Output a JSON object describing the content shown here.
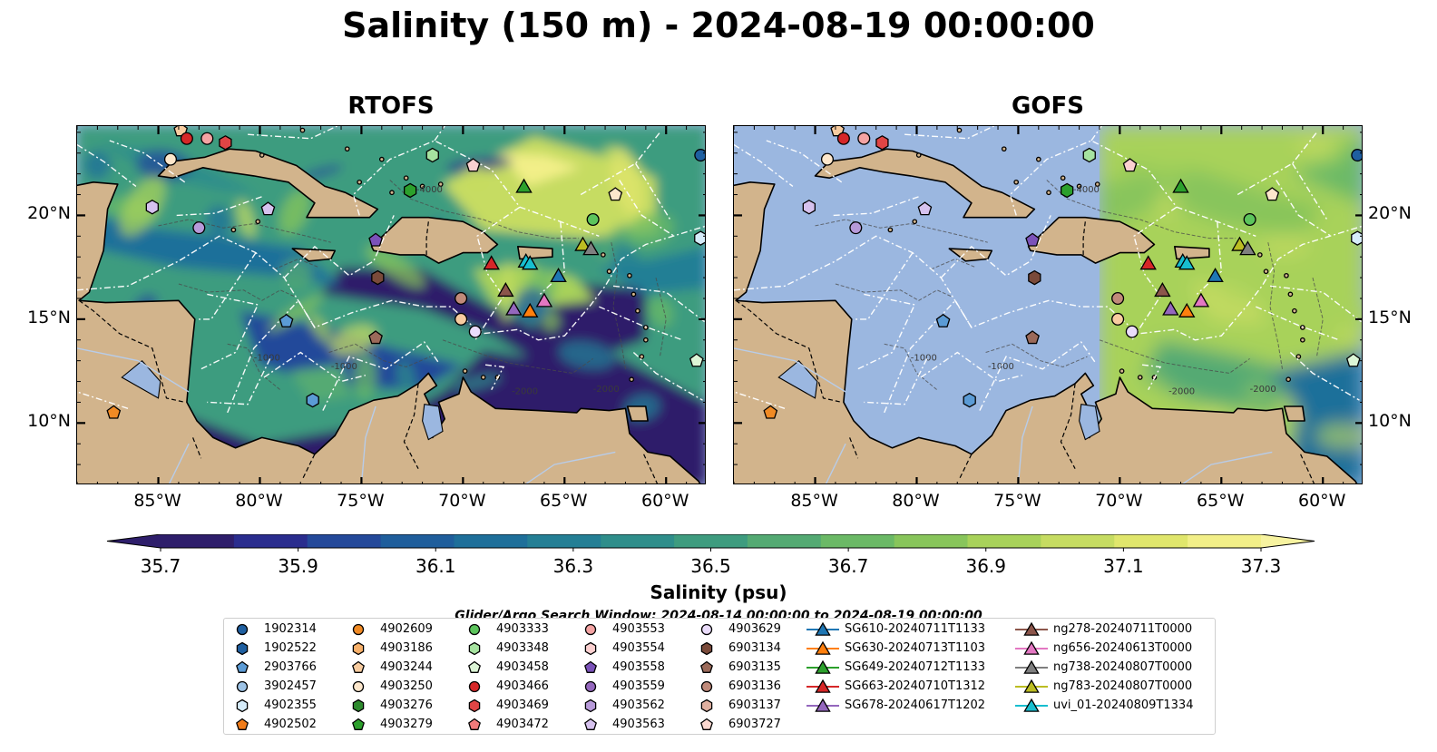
{
  "title": "Salinity (150 m) - 2024-08-19 00:00:00",
  "panels": [
    {
      "title": "RTOFS",
      "model": "rtofs"
    },
    {
      "title": "GOFS",
      "model": "gofs"
    }
  ],
  "map": {
    "lon_range": [
      -89,
      -58
    ],
    "lat_range": [
      7,
      24.3
    ],
    "lon_ticks": [
      "85°W",
      "80°W",
      "75°W",
      "70°W",
      "65°W",
      "60°W"
    ],
    "lon_tick_values": [
      -85,
      -80,
      -75,
      -70,
      -65,
      -60
    ],
    "lat_ticks": [
      "20°N",
      "15°N",
      "10°N"
    ],
    "lat_tick_values": [
      20,
      15,
      10
    ],
    "contour_labels": [
      "-1000",
      "-2000",
      "-4000",
      "-1000",
      "-2000"
    ],
    "colors": {
      "land": "#d2b48c",
      "ocean_mask": "#9bb7e0",
      "coast": "#000000",
      "eez": "#ffffff"
    }
  },
  "colorbar": {
    "label": "Salinity (psu)",
    "ticks": [
      "35.7",
      "35.9",
      "36.1",
      "36.3",
      "36.5",
      "36.7",
      "36.9",
      "37.1",
      "37.3"
    ],
    "tick_values": [
      35.7,
      35.9,
      36.1,
      36.3,
      36.5,
      36.7,
      36.9,
      37.1,
      37.3
    ],
    "range": [
      35.7,
      37.3
    ],
    "colors": [
      "#2e1e6b",
      "#2a2d8e",
      "#24499a",
      "#1f5e9c",
      "#1e6f9a",
      "#247f95",
      "#2f8e8b",
      "#3e9c7f",
      "#54aa73",
      "#6bb966",
      "#88c55b",
      "#a8d25a",
      "#c6dc62",
      "#e0e66c",
      "#f2ef88"
    ]
  },
  "search_window": "Glider/Argo Search Window: 2024-08-14 00:00:00 to 2024-08-19 00:00:00",
  "legend": {
    "columns": [
      [
        {
          "id": "1902314",
          "color": "#1f5fa0",
          "shape": "circle"
        },
        {
          "id": "1902522",
          "color": "#1f5fa0",
          "shape": "hexagon"
        },
        {
          "id": "2903766",
          "color": "#5b9bd5",
          "shape": "pentagon"
        },
        {
          "id": "3902457",
          "color": "#9dc3e6",
          "shape": "circle"
        },
        {
          "id": "4902355",
          "color": "#d6ecfa",
          "shape": "hexagon"
        },
        {
          "id": "4902502",
          "color": "#f07c1a",
          "shape": "pentagon"
        }
      ],
      [
        {
          "id": "4902609",
          "color": "#f08a24",
          "shape": "circle"
        },
        {
          "id": "4903186",
          "color": "#f7b06a",
          "shape": "hexagon"
        },
        {
          "id": "4903244",
          "color": "#f8cca0",
          "shape": "pentagon"
        },
        {
          "id": "4903250",
          "color": "#fde7cc",
          "shape": "circle"
        },
        {
          "id": "4903276",
          "color": "#2e8b2e",
          "shape": "hexagon"
        },
        {
          "id": "4903279",
          "color": "#2ca02c",
          "shape": "pentagon"
        }
      ],
      [
        {
          "id": "4903333",
          "color": "#5cc45c",
          "shape": "circle"
        },
        {
          "id": "4903348",
          "color": "#a6e3a0",
          "shape": "hexagon"
        },
        {
          "id": "4903458",
          "color": "#dcf5d6",
          "shape": "pentagon"
        },
        {
          "id": "4903466",
          "color": "#d62728",
          "shape": "circle"
        },
        {
          "id": "4903469",
          "color": "#e04545",
          "shape": "hexagon"
        },
        {
          "id": "4903472",
          "color": "#f07a7a",
          "shape": "pentagon"
        }
      ],
      [
        {
          "id": "4903553",
          "color": "#f4a3a3",
          "shape": "circle"
        },
        {
          "id": "4903554",
          "color": "#fbd0d0",
          "shape": "hexagon"
        },
        {
          "id": "4903558",
          "color": "#7b52b9",
          "shape": "pentagon"
        },
        {
          "id": "4903559",
          "color": "#9467bd",
          "shape": "circle"
        },
        {
          "id": "4903562",
          "color": "#b79ad9",
          "shape": "hexagon"
        },
        {
          "id": "4903563",
          "color": "#d6c2ee",
          "shape": "pentagon"
        }
      ],
      [
        {
          "id": "4903629",
          "color": "#eadcfb",
          "shape": "circle"
        },
        {
          "id": "6903134",
          "color": "#7a4a3a",
          "shape": "hexagon"
        },
        {
          "id": "6903135",
          "color": "#9b6a5a",
          "shape": "pentagon"
        },
        {
          "id": "6903136",
          "color": "#c08a7a",
          "shape": "circle"
        },
        {
          "id": "6903137",
          "color": "#e0b0a0",
          "shape": "hexagon"
        },
        {
          "id": "6903727",
          "color": "#fbd8d0",
          "shape": "pentagon"
        }
      ],
      [
        {
          "id": "SG610-20240711T1133",
          "color": "#1f77b4",
          "shape": "triangle"
        },
        {
          "id": "SG630-20240713T1103",
          "color": "#ff7f0e",
          "shape": "triangle"
        },
        {
          "id": "SG649-20240712T1133",
          "color": "#2ca02c",
          "shape": "triangle"
        },
        {
          "id": "SG663-20240710T1312",
          "color": "#d62728",
          "shape": "triangle"
        },
        {
          "id": "SG678-20240617T1202",
          "color": "#9467bd",
          "shape": "triangle"
        }
      ],
      [
        {
          "id": "ng278-20240711T0000",
          "color": "#8c564b",
          "shape": "triangle"
        },
        {
          "id": "ng656-20240613T0000",
          "color": "#e377c2",
          "shape": "triangle"
        },
        {
          "id": "ng738-20240807T0000",
          "color": "#7f7f7f",
          "shape": "triangle"
        },
        {
          "id": "ng783-20240807T0000",
          "color": "#bcbd22",
          "shape": "triangle"
        },
        {
          "id": "uvi_01-20240809T1334",
          "color": "#17becf",
          "shape": "triangle"
        }
      ]
    ]
  },
  "markers": [
    {
      "lon": -84.4,
      "lat": 22.7,
      "color": "#fde7cc",
      "shape": "circle"
    },
    {
      "lon": -83.9,
      "lat": 24.1,
      "color": "#f8cca0",
      "shape": "pentagon"
    },
    {
      "lon": -83.6,
      "lat": 23.7,
      "color": "#d62728",
      "shape": "circle"
    },
    {
      "lon": -82.6,
      "lat": 23.7,
      "color": "#f4a3a3",
      "shape": "circle"
    },
    {
      "lon": -81.7,
      "lat": 23.5,
      "color": "#e04545",
      "shape": "hexagon"
    },
    {
      "lon": -85.3,
      "lat": 20.4,
      "color": "#d6c2ee",
      "shape": "hexagon"
    },
    {
      "lon": -83.0,
      "lat": 19.4,
      "color": "#b79ad9",
      "shape": "circle"
    },
    {
      "lon": -79.6,
      "lat": 20.3,
      "color": "#d6c2ee",
      "shape": "pentagon"
    },
    {
      "lon": -78.7,
      "lat": 14.9,
      "color": "#5b9bd5",
      "shape": "pentagon"
    },
    {
      "lon": -77.4,
      "lat": 11.1,
      "color": "#5b9bd5",
      "shape": "hexagon"
    },
    {
      "lon": -87.2,
      "lat": 10.5,
      "color": "#f08a24",
      "shape": "pentagon"
    },
    {
      "lon": -74.3,
      "lat": 14.1,
      "color": "#9b6a5a",
      "shape": "pentagon"
    },
    {
      "lon": -74.2,
      "lat": 17.0,
      "color": "#7a4a3a",
      "shape": "hexagon"
    },
    {
      "lon": -74.3,
      "lat": 18.8,
      "color": "#7b52b9",
      "shape": "pentagon"
    },
    {
      "lon": -72.6,
      "lat": 21.2,
      "color": "#2ca02c",
      "shape": "hexagon"
    },
    {
      "lon": -71.5,
      "lat": 22.9,
      "color": "#a6e3a0",
      "shape": "hexagon"
    },
    {
      "lon": -69.5,
      "lat": 22.4,
      "color": "#fbd0d0",
      "shape": "pentagon"
    },
    {
      "lon": -70.1,
      "lat": 16.0,
      "color": "#c08a7a",
      "shape": "circle"
    },
    {
      "lon": -70.1,
      "lat": 15.0,
      "color": "#f8cca0",
      "shape": "circle"
    },
    {
      "lon": -69.4,
      "lat": 14.4,
      "color": "#eadcfb",
      "shape": "circle"
    },
    {
      "lon": -63.6,
      "lat": 19.8,
      "color": "#5cc45c",
      "shape": "circle"
    },
    {
      "lon": -62.5,
      "lat": 21.0,
      "color": "#fde7cc",
      "shape": "pentagon"
    },
    {
      "lon": -58.3,
      "lat": 22.9,
      "color": "#1f5fa0",
      "shape": "circle"
    },
    {
      "lon": -58.3,
      "lat": 18.9,
      "color": "#d6ecfa",
      "shape": "hexagon"
    },
    {
      "lon": -58.5,
      "lat": 13.0,
      "color": "#dcf5d6",
      "shape": "pentagon"
    },
    {
      "lon": -67.0,
      "lat": 21.4,
      "color": "#2ca02c",
      "shape": "triangle"
    },
    {
      "lon": -68.6,
      "lat": 17.7,
      "color": "#d62728",
      "shape": "triangle"
    },
    {
      "lon": -67.9,
      "lat": 16.4,
      "color": "#8c564b",
      "shape": "triangle"
    },
    {
      "lon": -67.5,
      "lat": 15.5,
      "color": "#9467bd",
      "shape": "triangle"
    },
    {
      "lon": -66.7,
      "lat": 15.4,
      "color": "#ff7f0e",
      "shape": "triangle"
    },
    {
      "lon": -66.0,
      "lat": 15.9,
      "color": "#e377c2",
      "shape": "triangle"
    },
    {
      "lon": -66.9,
      "lat": 17.8,
      "color": "#17becf",
      "shape": "triangle"
    },
    {
      "lon": -66.7,
      "lat": 17.7,
      "color": "#17becf",
      "shape": "triangle"
    },
    {
      "lon": -65.3,
      "lat": 17.1,
      "color": "#1f77b4",
      "shape": "triangle"
    },
    {
      "lon": -64.1,
      "lat": 18.6,
      "color": "#bcbd22",
      "shape": "triangle"
    },
    {
      "lon": -63.7,
      "lat": 18.4,
      "color": "#7f7f7f",
      "shape": "triangle"
    }
  ]
}
